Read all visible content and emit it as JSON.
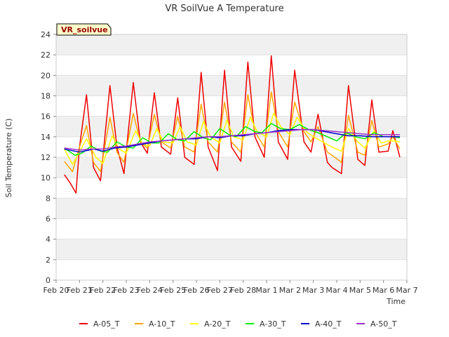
{
  "chart_data": {
    "type": "line",
    "title": "VR SoilVue A Temperature",
    "xlabel": "Time",
    "ylabel": "Soil Temperature (C)",
    "ylim": [
      0,
      24
    ],
    "yticks": [
      0,
      2,
      4,
      6,
      8,
      10,
      12,
      14,
      16,
      18,
      20,
      22,
      24
    ],
    "xlim": [
      0,
      15
    ],
    "xticks": [
      {
        "x": 0,
        "label": "Feb 20"
      },
      {
        "x": 1,
        "label": "Feb 21"
      },
      {
        "x": 2,
        "label": "Feb 22"
      },
      {
        "x": 3,
        "label": "Feb 23"
      },
      {
        "x": 4,
        "label": "Feb 24"
      },
      {
        "x": 5,
        "label": "Feb 25"
      },
      {
        "x": 6,
        "label": "Feb 26"
      },
      {
        "x": 7,
        "label": "Feb 27"
      },
      {
        "x": 8,
        "label": "Feb 28"
      },
      {
        "x": 9,
        "label": "Mar 1"
      },
      {
        "x": 10,
        "label": "Mar 2"
      },
      {
        "x": 11,
        "label": "Mar 3"
      },
      {
        "x": 12,
        "label": "Mar 4"
      },
      {
        "x": 13,
        "label": "Mar 5"
      },
      {
        "x": 14,
        "label": "Mar 6"
      },
      {
        "x": 15,
        "label": "Mar 7"
      }
    ],
    "x_units_note": "",
    "grid": true,
    "legend_position": "bottom",
    "annotation": "VR_soilvue",
    "series": [
      {
        "name": "A-05_T",
        "color": "#ee0000",
        "x": [
          0.35,
          0.6,
          0.85,
          1.0,
          1.3,
          1.6,
          1.9,
          2.3,
          2.6,
          2.9,
          3.3,
          3.6,
          3.9,
          4.2,
          4.5,
          4.9,
          5.2,
          5.5,
          5.9,
          6.2,
          6.5,
          6.9,
          7.2,
          7.5,
          7.9,
          8.2,
          8.5,
          8.9,
          9.2,
          9.5,
          9.9,
          10.2,
          10.6,
          10.9,
          11.2,
          11.6,
          11.8,
          12.2,
          12.5,
          12.9,
          13.2,
          13.5,
          13.8,
          14.2,
          14.4,
          14.7
        ],
        "values": [
          10.3,
          9.5,
          8.5,
          13.0,
          18.1,
          11.0,
          9.7,
          19.0,
          13.0,
          10.4,
          19.3,
          13.5,
          12.4,
          18.3,
          13.0,
          12.3,
          17.8,
          12.0,
          11.3,
          20.3,
          13.0,
          10.7,
          20.5,
          13.0,
          11.6,
          21.3,
          14.0,
          12.0,
          21.9,
          13.5,
          11.8,
          20.5,
          13.5,
          12.5,
          16.2,
          11.5,
          11.0,
          10.4,
          19.0,
          11.8,
          11.2,
          17.6,
          12.5,
          12.6,
          14.6,
          12.0
        ]
      },
      {
        "name": "A-10_T",
        "color": "#ffa500",
        "x": [
          0.35,
          0.7,
          1.0,
          1.3,
          1.6,
          1.9,
          2.3,
          2.6,
          2.9,
          3.3,
          3.6,
          3.9,
          4.2,
          4.5,
          4.9,
          5.2,
          5.5,
          5.9,
          6.2,
          6.5,
          6.9,
          7.2,
          7.5,
          7.9,
          8.2,
          8.5,
          8.9,
          9.2,
          9.5,
          9.9,
          10.2,
          10.6,
          10.9,
          11.2,
          11.6,
          11.8,
          12.2,
          12.5,
          12.9,
          13.2,
          13.5,
          13.8,
          14.2,
          14.4,
          14.7
        ],
        "values": [
          11.6,
          10.6,
          13.0,
          15.1,
          11.5,
          10.6,
          15.9,
          12.5,
          11.5,
          16.3,
          13.5,
          12.9,
          16.2,
          13.5,
          12.9,
          16.0,
          13.0,
          12.5,
          17.2,
          13.5,
          12.5,
          17.4,
          13.5,
          12.5,
          18.1,
          14.5,
          13.0,
          18.4,
          14.5,
          13.0,
          17.4,
          14.5,
          13.5,
          15.0,
          12.5,
          12.2,
          11.5,
          16.1,
          12.5,
          12.2,
          15.6,
          13.0,
          13.3,
          14.0,
          12.8
        ]
      },
      {
        "name": "A-20_T",
        "color": "#ffff00",
        "x": [
          0.35,
          0.7,
          1.0,
          1.3,
          1.7,
          2.0,
          2.4,
          2.7,
          3.0,
          3.4,
          3.7,
          4.0,
          4.3,
          4.6,
          5.0,
          5.3,
          5.6,
          6.0,
          6.3,
          6.6,
          7.0,
          7.3,
          7.6,
          8.0,
          8.3,
          8.6,
          9.0,
          9.3,
          9.6,
          10.0,
          10.3,
          10.7,
          11.0,
          11.4,
          11.8,
          12.2,
          12.5,
          12.9,
          13.2,
          13.6,
          13.9,
          14.2,
          14.5,
          14.7
        ],
        "values": [
          12.8,
          11.3,
          12.5,
          13.8,
          12.0,
          11.4,
          14.1,
          12.8,
          12.4,
          14.6,
          13.3,
          13.1,
          14.8,
          13.5,
          13.4,
          15.0,
          13.5,
          13.2,
          15.5,
          14.0,
          13.4,
          15.6,
          14.0,
          13.7,
          15.9,
          14.5,
          14.0,
          16.3,
          15.0,
          14.2,
          15.9,
          14.5,
          14.0,
          13.5,
          13.0,
          12.6,
          14.8,
          13.5,
          12.9,
          14.6,
          13.4,
          13.6,
          13.6,
          13.5
        ]
      },
      {
        "name": "A-30_T",
        "color": "#00ee00",
        "x": [
          0.35,
          0.8,
          1.1,
          1.5,
          1.9,
          2.2,
          2.6,
          3.0,
          3.3,
          3.7,
          4.1,
          4.4,
          4.8,
          5.2,
          5.5,
          5.9,
          6.3,
          6.6,
          7.0,
          7.4,
          7.7,
          8.1,
          8.5,
          8.8,
          9.2,
          9.6,
          10.0,
          10.4,
          10.8,
          11.2,
          11.6,
          12.0,
          12.4,
          12.8,
          13.2,
          13.6,
          14.0,
          14.4,
          14.7
        ],
        "values": [
          12.9,
          12.2,
          12.4,
          13.1,
          12.6,
          12.5,
          13.5,
          13.0,
          12.9,
          13.9,
          13.4,
          13.4,
          14.3,
          13.7,
          13.6,
          14.5,
          13.9,
          13.7,
          14.8,
          14.2,
          14.0,
          15.0,
          14.5,
          14.4,
          15.3,
          14.8,
          14.7,
          15.2,
          14.7,
          14.4,
          14.0,
          13.6,
          14.4,
          14.0,
          13.8,
          14.4,
          14.0,
          14.0,
          13.9
        ]
      },
      {
        "name": "A-40_T",
        "color": "#0000cc",
        "x": [
          0.35,
          1.0,
          1.6,
          2.0,
          2.5,
          3.0,
          3.5,
          4.0,
          4.5,
          5.0,
          5.5,
          6.0,
          6.5,
          7.0,
          7.5,
          8.0,
          8.5,
          9.0,
          9.5,
          10.0,
          10.5,
          11.0,
          11.5,
          12.0,
          12.5,
          13.0,
          13.5,
          14.0,
          14.7
        ],
        "values": [
          12.8,
          12.5,
          12.8,
          12.6,
          12.9,
          13.0,
          13.2,
          13.4,
          13.6,
          13.7,
          13.8,
          13.8,
          14.0,
          13.9,
          14.1,
          14.1,
          14.3,
          14.4,
          14.6,
          14.7,
          14.7,
          14.7,
          14.5,
          14.3,
          14.1,
          14.1,
          14.0,
          14.0,
          14.0
        ]
      },
      {
        "name": "A-50_T",
        "color": "#9933cc",
        "x": [
          0.35,
          1.0,
          1.5,
          2.0,
          2.5,
          3.0,
          3.5,
          4.0,
          4.5,
          5.0,
          5.5,
          6.0,
          6.5,
          7.0,
          7.5,
          8.0,
          8.5,
          9.0,
          9.5,
          10.0,
          10.5,
          11.0,
          11.5,
          12.0,
          12.5,
          13.0,
          13.5,
          14.0,
          14.7
        ],
        "values": [
          12.9,
          12.7,
          12.8,
          12.8,
          13.0,
          13.1,
          13.3,
          13.5,
          13.6,
          13.7,
          13.8,
          13.9,
          14.0,
          14.0,
          14.1,
          14.2,
          14.3,
          14.4,
          14.5,
          14.6,
          14.7,
          14.7,
          14.6,
          14.5,
          14.4,
          14.3,
          14.2,
          14.2,
          14.2
        ]
      }
    ]
  }
}
